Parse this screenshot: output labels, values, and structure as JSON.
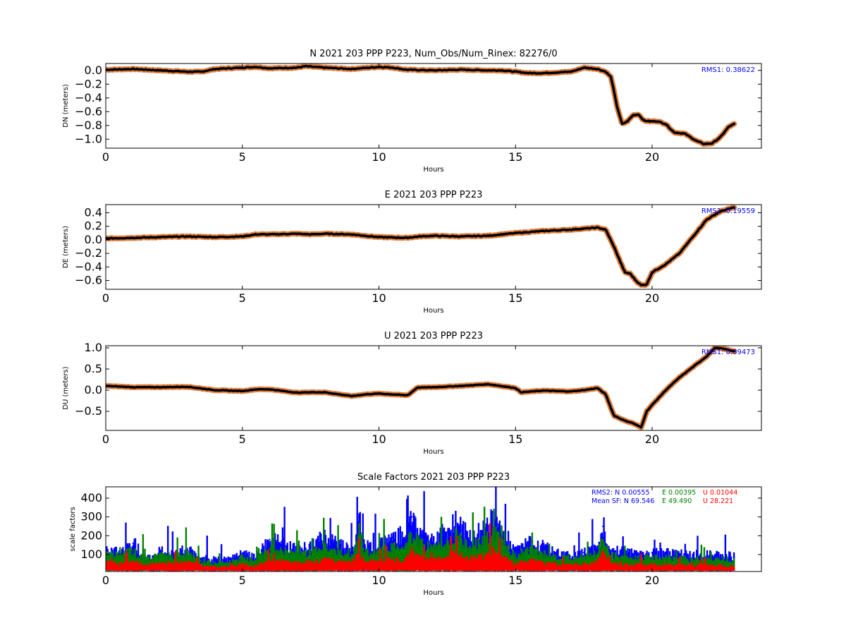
{
  "chart_data": [
    {
      "type": "line",
      "title": "N 2021 203 PPP  P223, Num_Obs/Num_Rinex: 82276/0",
      "xlabel": "Hours",
      "ylabel": "DN (meters)",
      "xlim": [
        0,
        24
      ],
      "ylim": [
        -1.13,
        0.1
      ],
      "xticks": [
        "0",
        "5",
        "10",
        "15",
        "20"
      ],
      "yticks": [
        "0.0",
        "−0.2",
        "−0.4",
        "−0.6",
        "−0.8",
        "−1.0"
      ],
      "annotation": "RMS1:  0.38622",
      "series": [
        {
          "color": "#000000",
          "band_color": "#e08040",
          "x": [
            0,
            1,
            2,
            3,
            3.5,
            4,
            5,
            5.5,
            6,
            7,
            7.3,
            8,
            9,
            9.3,
            10,
            10.5,
            11,
            12,
            13,
            14,
            14.5,
            15,
            15.5,
            16,
            17,
            17.2,
            17.5,
            18,
            18.3,
            18.5,
            18.7,
            18.9,
            19.1,
            19.3,
            19.5,
            19.7,
            19.9,
            20.2,
            20.5,
            20.8,
            21.2,
            21.6,
            21.9,
            22.2,
            22.5,
            22.8,
            23
          ],
          "y": [
            0.01,
            0.02,
            0.0,
            -0.02,
            -0.02,
            0.02,
            0.04,
            0.05,
            0.03,
            0.04,
            0.06,
            0.04,
            0.02,
            0.03,
            0.05,
            0.04,
            0.01,
            0.0,
            0.01,
            0.0,
            0.0,
            -0.02,
            -0.04,
            -0.04,
            -0.02,
            0.0,
            0.04,
            0.02,
            -0.02,
            -0.1,
            -0.5,
            -0.78,
            -0.74,
            -0.65,
            -0.64,
            -0.73,
            -0.74,
            -0.74,
            -0.78,
            -0.9,
            -0.92,
            -1.02,
            -1.07,
            -1.06,
            -0.97,
            -0.82,
            -0.78
          ]
        }
      ]
    },
    {
      "type": "line",
      "title": "E 2021 203 PPP  P223",
      "xlabel": "Hours",
      "ylabel": "DE (meters)",
      "xlim": [
        0,
        24
      ],
      "ylim": [
        -0.73,
        0.52
      ],
      "xticks": [
        "0",
        "5",
        "10",
        "15",
        "20"
      ],
      "yticks": [
        "0.4",
        "0.2",
        "0.0",
        "−0.2",
        "−0.4",
        "−0.6"
      ],
      "annotation": "RMS1:  0.19559",
      "series": [
        {
          "color": "#000000",
          "band_color": "#e08040",
          "x": [
            0,
            1,
            2,
            3,
            4,
            5,
            5.5,
            6,
            7,
            7.5,
            8,
            9,
            9.5,
            10,
            11,
            11.5,
            12,
            13,
            14,
            15,
            16,
            17,
            18,
            18.3,
            18.6,
            19,
            19.2,
            19.4,
            19.6,
            19.8,
            20,
            20.5,
            21,
            21.5,
            22,
            22.5,
            23
          ],
          "y": [
            0.02,
            0.03,
            0.04,
            0.05,
            0.04,
            0.05,
            0.08,
            0.08,
            0.09,
            0.08,
            0.09,
            0.08,
            0.06,
            0.04,
            0.03,
            0.05,
            0.06,
            0.05,
            0.06,
            0.1,
            0.13,
            0.15,
            0.18,
            0.15,
            -0.1,
            -0.48,
            -0.5,
            -0.6,
            -0.67,
            -0.66,
            -0.48,
            -0.36,
            -0.2,
            0.05,
            0.3,
            0.42,
            0.48
          ]
        }
      ]
    },
    {
      "type": "line",
      "title": "U 2021 203 PPP  P223",
      "xlabel": "Hours",
      "ylabel": "DU (meters)",
      "xlim": [
        0,
        24
      ],
      "ylim": [
        -0.95,
        1.05
      ],
      "xticks": [
        "0",
        "5",
        "10",
        "15",
        "20"
      ],
      "yticks": [
        "1.0",
        "0.5",
        "0.0",
        "−0.5"
      ],
      "annotation": "RMS1:  0.39473",
      "series": [
        {
          "color": "#000000",
          "band_color": "#e08040",
          "x": [
            0,
            1,
            2,
            3,
            4,
            5,
            5.5,
            6,
            6.5,
            7,
            7.5,
            8,
            9,
            9.5,
            10,
            11,
            11.1,
            11.4,
            12,
            13,
            14,
            15,
            15.2,
            16,
            17,
            17.5,
            18,
            18.3,
            18.6,
            19,
            19.3,
            19.6,
            19.8,
            20,
            20.5,
            21,
            21.5,
            22,
            22.3,
            22.6,
            23
          ],
          "y": [
            0.1,
            0.07,
            0.07,
            0.08,
            0.0,
            -0.02,
            0.02,
            0.02,
            -0.02,
            -0.06,
            -0.05,
            -0.05,
            -0.14,
            -0.1,
            -0.08,
            -0.12,
            -0.1,
            0.06,
            0.07,
            0.1,
            0.14,
            0.05,
            -0.05,
            -0.01,
            -0.03,
            0.0,
            0.05,
            -0.1,
            -0.6,
            -0.72,
            -0.78,
            -0.88,
            -0.5,
            -0.35,
            0.0,
            0.3,
            0.55,
            0.8,
            1.0,
            0.98,
            0.92
          ]
        }
      ]
    },
    {
      "type": "scatter",
      "title": "Scale Factors 2021 203 PPP  P223",
      "xlabel": "Hours",
      "ylabel": "scale factors",
      "xlim": [
        0,
        24
      ],
      "ylim": [
        10,
        460
      ],
      "xticks": [
        "0",
        "5",
        "10",
        "15",
        "20"
      ],
      "yticks": [
        "400",
        "300",
        "200",
        "100"
      ],
      "annotations": {
        "rms2_label": "RMS2: N  0.00555",
        "rms2_e": "E  0.00395",
        "rms2_u": "U  0.01044",
        "meansf_label": "Mean SF: N  69.546",
        "meansf_e": "E  49.490",
        "meansf_u": "U  28.221"
      },
      "series": [
        {
          "color": "#0000ff",
          "x": [
            0,
            0.5,
            1,
            1.5,
            2,
            3,
            3.5,
            4,
            4.5,
            5,
            5.5,
            6,
            6.5,
            7,
            7.5,
            8,
            8.5,
            9,
            9.3,
            9.5,
            10,
            10.5,
            11,
            11.2,
            11.5,
            12,
            12.5,
            12.8,
            13,
            13.5,
            14,
            14.2,
            14.5,
            15,
            15.5,
            16,
            16.5,
            17,
            17.5,
            18,
            18.2,
            18.5,
            19,
            19.5,
            20,
            21,
            22,
            23
          ],
          "y": [
            120,
            110,
            160,
            80,
            110,
            120,
            80,
            70,
            70,
            100,
            80,
            180,
            150,
            120,
            140,
            190,
            150,
            130,
            260,
            140,
            150,
            190,
            200,
            300,
            210,
            180,
            220,
            280,
            230,
            190,
            250,
            330,
            200,
            110,
            160,
            140,
            110,
            90,
            110,
            130,
            250,
            120,
            110,
            100,
            110,
            100,
            95,
            90
          ]
        },
        {
          "color": "#008000",
          "x": [
            0,
            0.5,
            1,
            1.5,
            2,
            3,
            3.5,
            4,
            4.5,
            5,
            5.5,
            6,
            6.5,
            7,
            7.5,
            8,
            8.5,
            9,
            9.3,
            9.5,
            10,
            10.5,
            11,
            11.2,
            11.5,
            12,
            12.5,
            12.8,
            13,
            13.5,
            14,
            14.2,
            14.5,
            15,
            15.5,
            16,
            16.5,
            17,
            17.5,
            18,
            18.2,
            18.5,
            19,
            19.5,
            20,
            21,
            22,
            23
          ],
          "y": [
            95,
            90,
            120,
            70,
            90,
            100,
            65,
            55,
            55,
            80,
            65,
            130,
            110,
            100,
            110,
            130,
            115,
            100,
            180,
            105,
            110,
            130,
            140,
            200,
            150,
            130,
            160,
            190,
            165,
            140,
            180,
            220,
            150,
            85,
            120,
            100,
            85,
            70,
            85,
            100,
            180,
            90,
            80,
            75,
            80,
            75,
            72,
            70
          ]
        },
        {
          "color": "#ff0000",
          "x": [
            0,
            0.5,
            1,
            1.5,
            2,
            3,
            3.5,
            4,
            4.5,
            5,
            5.5,
            6,
            6.5,
            7,
            7.5,
            8,
            8.5,
            9,
            9.3,
            9.5,
            10,
            10.5,
            11,
            11.2,
            11.5,
            12,
            12.5,
            12.8,
            13,
            13.5,
            14,
            14.2,
            14.5,
            15,
            15.5,
            16,
            16.5,
            17,
            17.5,
            18,
            18.2,
            18.5,
            19,
            19.5,
            20,
            21,
            22,
            23
          ],
          "y": [
            55,
            50,
            65,
            40,
            50,
            55,
            38,
            32,
            32,
            45,
            38,
            70,
            60,
            55,
            60,
            70,
            62,
            55,
            100,
            58,
            60,
            70,
            75,
            110,
            80,
            70,
            85,
            100,
            88,
            75,
            95,
            120,
            80,
            48,
            65,
            55,
            48,
            40,
            48,
            55,
            100,
            50,
            45,
            42,
            45,
            42,
            40,
            38
          ]
        }
      ]
    }
  ]
}
